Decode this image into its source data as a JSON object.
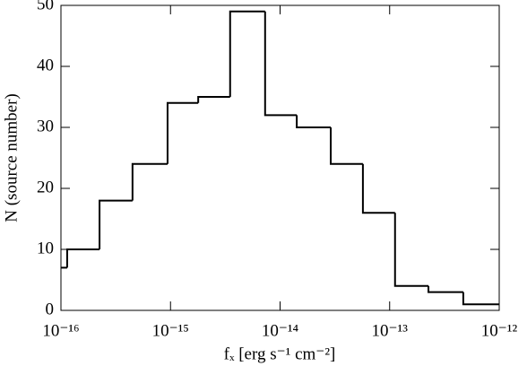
{
  "chart_data": {
    "type": "histogram",
    "xlabel": "fₓ [erg s⁻¹ cm⁻²]",
    "ylabel": "N (source number)",
    "bins": [
      1e-16,
      1.14e-16,
      2.25e-16,
      4.5e-16,
      9.4e-16,
      1.79e-15,
      3.5e-15,
      7.3e-15,
      1.42e-14,
      2.9e-14,
      5.7e-14,
      1.12e-13,
      2.26e-13,
      4.7e-13,
      1e-12
    ],
    "counts": [
      7,
      10,
      18,
      24,
      34,
      35,
      49,
      32,
      30,
      24,
      16,
      4,
      3,
      1
    ],
    "color": "#000000",
    "xscale": "log",
    "xlim": [
      1e-16,
      1e-12
    ],
    "xticks": [
      {
        "value": 1e-16,
        "label": "10⁻¹⁶"
      },
      {
        "value": 1e-15,
        "label": "10⁻¹⁵"
      },
      {
        "value": 1e-14,
        "label": "10⁻¹⁴"
      },
      {
        "value": 1e-13,
        "label": "10⁻¹³"
      },
      {
        "value": 1e-12,
        "label": "10⁻¹²"
      }
    ],
    "ylim": [
      0,
      50
    ],
    "yticks": [
      0,
      10,
      20,
      30,
      40,
      50
    ]
  }
}
